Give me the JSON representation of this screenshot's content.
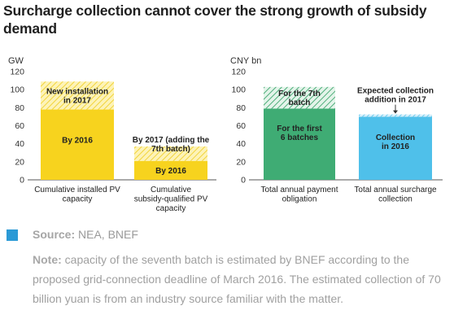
{
  "title": "Surcharge collection cannot cover the strong growth of subsidy demand",
  "source": {
    "label": "Source:",
    "text": "NEA, BNEF"
  },
  "note": {
    "label": "Note:",
    "text": "capacity of the seventh batch is estimated by BNEF according to the proposed grid-connection deadline of March 2016. The estimated collection of 70 billion yuan is from an industry source familiar with the matter."
  },
  "colors": {
    "yellow": "#f7d31e",
    "yellow_hatch": "#fbe97a",
    "green": "#3fac74",
    "green_hatch": "#8fd0ac",
    "blue": "#4fc0ea",
    "source_square": "#2b9ad6"
  },
  "chart_data": [
    {
      "type": "bar",
      "stacked": true,
      "unit_label": "GW",
      "ylim": [
        0,
        120
      ],
      "yticks": [
        0,
        20,
        40,
        60,
        80,
        100,
        120
      ],
      "categories": [
        "Cumulative installed  PV capacity",
        "Cumulative subsidy-qualified PV capacity"
      ],
      "series": [
        {
          "name": "By 2016",
          "values": [
            78,
            21
          ],
          "style": "solid"
        },
        {
          "name": "New installation in 2017",
          "values": [
            31,
            0
          ],
          "style": "hatch"
        },
        {
          "name": "By 2017 (adding the 7th batch)",
          "values": [
            0,
            16
          ],
          "style": "hatch"
        }
      ],
      "segment_labels": [
        "By 2016",
        "New installation in 2017",
        "By 2016",
        "By 2017 (adding the 7th batch)"
      ]
    },
    {
      "type": "bar",
      "stacked": true,
      "unit_label": "CNY bn",
      "ylim": [
        0,
        120
      ],
      "yticks": [
        0,
        20,
        40,
        60,
        80,
        100,
        120
      ],
      "categories": [
        "Total annual payment obligation",
        "Total annual surcharge collection"
      ],
      "series": [
        {
          "name": "For the first 6 batches",
          "values": [
            79,
            0
          ],
          "style": "solid-green"
        },
        {
          "name": "For the 7th batch",
          "values": [
            24,
            0
          ],
          "style": "hatch-green"
        },
        {
          "name": "Collection in 2016",
          "values": [
            0,
            70
          ],
          "style": "solid-blue"
        },
        {
          "name": "Expected collection addition in 2017",
          "values": [
            0,
            2.5
          ],
          "style": "hatch-blue"
        }
      ],
      "segment_labels": [
        "For the first 6 batches",
        "For the 7th batch",
        "Collection in 2016",
        "Expected collection addition in 2017"
      ]
    }
  ]
}
